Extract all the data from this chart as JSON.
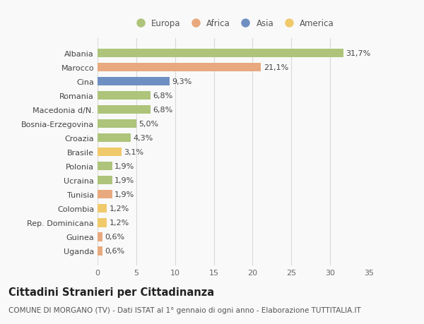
{
  "categories": [
    "Albania",
    "Marocco",
    "Cina",
    "Romania",
    "Macedonia d/N.",
    "Bosnia-Erzegovina",
    "Croazia",
    "Brasile",
    "Polonia",
    "Ucraina",
    "Tunisia",
    "Colombia",
    "Rep. Dominicana",
    "Guinea",
    "Uganda"
  ],
  "values": [
    31.7,
    21.1,
    9.3,
    6.8,
    6.8,
    5.0,
    4.3,
    3.1,
    1.9,
    1.9,
    1.9,
    1.2,
    1.2,
    0.6,
    0.6
  ],
  "labels": [
    "31,7%",
    "21,1%",
    "9,3%",
    "6,8%",
    "6,8%",
    "5,0%",
    "4,3%",
    "3,1%",
    "1,9%",
    "1,9%",
    "1,9%",
    "1,2%",
    "1,2%",
    "0,6%",
    "0,6%"
  ],
  "colors": [
    "#adc47a",
    "#e8a97e",
    "#6e8fc2",
    "#adc47a",
    "#adc47a",
    "#adc47a",
    "#adc47a",
    "#f0c96a",
    "#adc47a",
    "#adc47a",
    "#e8a97e",
    "#f0c96a",
    "#f0c96a",
    "#e8a97e",
    "#e8a97e"
  ],
  "legend_labels": [
    "Europa",
    "Africa",
    "Asia",
    "America"
  ],
  "legend_colors": [
    "#adc47a",
    "#e8a97e",
    "#6e8fc2",
    "#f0c96a"
  ],
  "title": "Cittadini Stranieri per Cittadinanza",
  "subtitle": "COMUNE DI MORGANO (TV) - Dati ISTAT al 1° gennaio di ogni anno - Elaborazione TUTTITALIA.IT",
  "xlim": [
    0,
    35
  ],
  "xticks": [
    0,
    5,
    10,
    15,
    20,
    25,
    30,
    35
  ],
  "bg_color": "#f9f9f9",
  "grid_color": "#d8d8d8",
  "bar_height": 0.62,
  "label_fontsize": 8.0,
  "tick_fontsize": 8.0,
  "title_fontsize": 10.5,
  "subtitle_fontsize": 7.5
}
